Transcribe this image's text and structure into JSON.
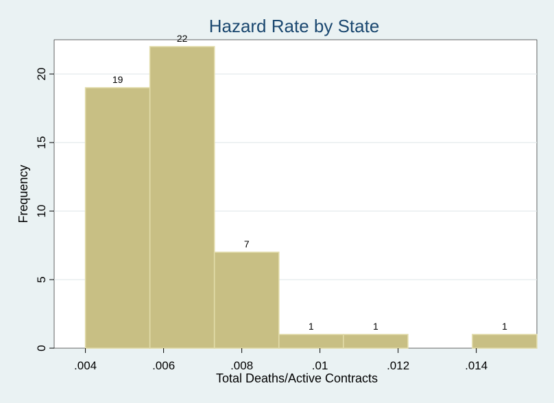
{
  "chart_data": {
    "type": "bar",
    "title": "Hazard Rate by State",
    "xlabel": "Total Deaths/Active Contracts",
    "ylabel": "Frequency",
    "bins": [
      {
        "start": 0.004,
        "end": 0.00565,
        "value": 19,
        "label": "19"
      },
      {
        "start": 0.00565,
        "end": 0.0073,
        "value": 22,
        "label": "22"
      },
      {
        "start": 0.0073,
        "end": 0.00895,
        "value": 7,
        "label": "7"
      },
      {
        "start": 0.00895,
        "end": 0.0106,
        "value": 1,
        "label": "1"
      },
      {
        "start": 0.0106,
        "end": 0.01225,
        "value": 1,
        "label": "1"
      },
      {
        "start": 0.01225,
        "end": 0.0139,
        "value": 0,
        "label": ""
      },
      {
        "start": 0.0139,
        "end": 0.01555,
        "value": 1,
        "label": "1"
      }
    ],
    "xticks": [
      {
        "value": 0.004,
        "label": ".004"
      },
      {
        "value": 0.006,
        "label": ".006"
      },
      {
        "value": 0.008,
        "label": ".008"
      },
      {
        "value": 0.01,
        "label": ".01"
      },
      {
        "value": 0.012,
        "label": ".012"
      },
      {
        "value": 0.014,
        "label": ".014"
      }
    ],
    "yticks": [
      {
        "value": 0,
        "label": "0"
      },
      {
        "value": 5,
        "label": "5"
      },
      {
        "value": 10,
        "label": "10"
      },
      {
        "value": 15,
        "label": "15"
      },
      {
        "value": 20,
        "label": "20"
      }
    ],
    "xlim": [
      0.0032,
      0.01555
    ],
    "ylim": [
      0,
      22.5
    ],
    "grid": true,
    "colors": {
      "bar_fill": "#c8bf84",
      "bar_stroke": "#e1dba9",
      "plot_bg": "#ffffff",
      "page_bg": "#eaf2f3",
      "grid": "#e3ebec",
      "title": "#1a476f"
    }
  }
}
